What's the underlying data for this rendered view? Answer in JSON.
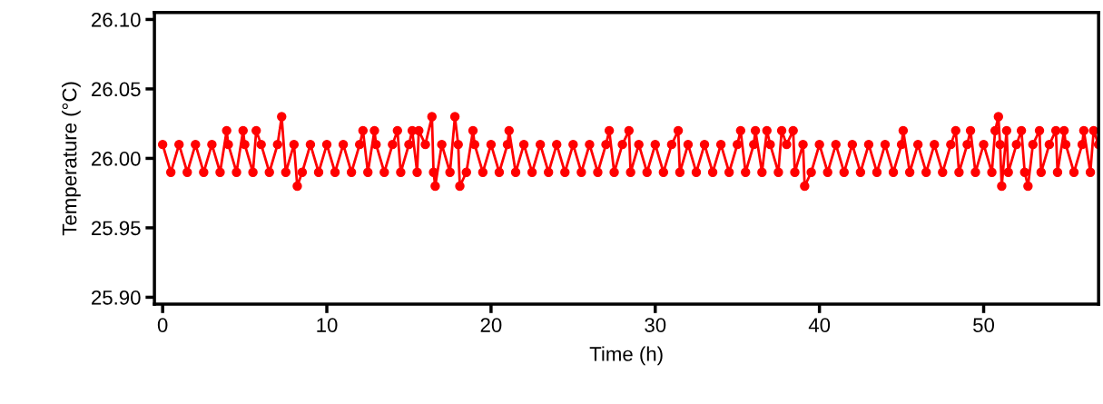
{
  "chart_data": {
    "type": "line",
    "xlabel": "Time (h)",
    "ylabel": "Temperature (°C)",
    "xlim": [
      -0.5,
      57
    ],
    "xticks": [
      0,
      10,
      20,
      30,
      40,
      50
    ],
    "ylim": [
      25.895,
      26.105
    ],
    "yticks": [
      {
        "value": 25.9,
        "label": "25.90"
      },
      {
        "value": 25.95,
        "label": "25.95"
      },
      {
        "value": 26.0,
        "label": "26.00"
      },
      {
        "value": 26.05,
        "label": "26.05"
      },
      {
        "value": 26.1,
        "label": "26.10"
      }
    ],
    "grid": false,
    "marker": "circle",
    "line_style": "solid",
    "series": [
      {
        "color": "#ff0000",
        "x": [
          0,
          0.5,
          1,
          1.5,
          2,
          2.5,
          3,
          3.5,
          3.9,
          4,
          4.5,
          4.9,
          5,
          5.5,
          5.7,
          6,
          6.5,
          7,
          7.25,
          7.5,
          8,
          8.2,
          8.5,
          9,
          9.5,
          10,
          10.5,
          11,
          11.5,
          12,
          12.2,
          12.5,
          12.9,
          13,
          13.5,
          14,
          14.3,
          14.5,
          15,
          15.2,
          15.5,
          15.6,
          16,
          16.4,
          16.5,
          16.6,
          17,
          17.5,
          17.8,
          18,
          18.1,
          18.5,
          18.9,
          19,
          19.5,
          20,
          20.5,
          21,
          21.1,
          21.5,
          22,
          22.5,
          23,
          23.5,
          24,
          24.5,
          25,
          25.5,
          26,
          26.5,
          27,
          27.2,
          27.5,
          28,
          28.4,
          28.5,
          29,
          29.5,
          30,
          30.5,
          31,
          31.4,
          31.5,
          32,
          32.5,
          33,
          33.5,
          34,
          34.5,
          35,
          35.2,
          35.5,
          36,
          36.1,
          36.5,
          36.8,
          37,
          37.5,
          37.7,
          38,
          38.4,
          38.5,
          39,
          39.1,
          39.5,
          40,
          40.5,
          41,
          41.5,
          42,
          42.5,
          43,
          43.5,
          44,
          44.5,
          45,
          45.1,
          45.5,
          46,
          46.5,
          47,
          47.5,
          48,
          48.3,
          48.5,
          49,
          49.2,
          49.5,
          50,
          50.5,
          50.7,
          50.9,
          51,
          51.1,
          51.4,
          51.5,
          52,
          52.3,
          52.5,
          52.7,
          53,
          53.4,
          53.5,
          54,
          54.4,
          54.5,
          54.9,
          55,
          55.5,
          56,
          56.1,
          56.5,
          56.7,
          57
        ],
        "values": [
          26.01,
          25.99,
          26.01,
          25.99,
          26.01,
          25.99,
          26.01,
          25.99,
          26.02,
          26.01,
          25.99,
          26.02,
          26.01,
          25.99,
          26.02,
          26.01,
          25.99,
          26.01,
          26.03,
          25.99,
          26.01,
          25.98,
          25.99,
          26.01,
          25.99,
          26.01,
          25.99,
          26.01,
          25.99,
          26.01,
          26.02,
          25.99,
          26.02,
          26.01,
          25.99,
          26.01,
          26.02,
          25.99,
          26.01,
          26.02,
          25.99,
          26.02,
          26.01,
          26.03,
          25.99,
          25.98,
          26.01,
          25.99,
          26.03,
          26.01,
          25.98,
          25.99,
          26.02,
          26.01,
          25.99,
          26.01,
          25.99,
          26.01,
          26.02,
          25.99,
          26.01,
          25.99,
          26.01,
          25.99,
          26.01,
          25.99,
          26.01,
          25.99,
          26.01,
          25.99,
          26.01,
          26.02,
          25.99,
          26.01,
          26.02,
          25.99,
          26.01,
          25.99,
          26.01,
          25.99,
          26.01,
          26.02,
          25.99,
          26.01,
          25.99,
          26.01,
          25.99,
          26.01,
          25.99,
          26.01,
          26.02,
          25.99,
          26.01,
          26.02,
          25.99,
          26.02,
          26.01,
          25.99,
          26.02,
          26.01,
          26.02,
          25.99,
          26.01,
          25.98,
          25.99,
          26.01,
          25.99,
          26.01,
          25.99,
          26.01,
          25.99,
          26.01,
          25.99,
          26.01,
          25.99,
          26.01,
          26.02,
          25.99,
          26.01,
          25.99,
          26.01,
          25.99,
          26.01,
          26.02,
          25.99,
          26.01,
          26.02,
          25.99,
          26.01,
          25.99,
          26.02,
          26.03,
          26.01,
          25.98,
          26.02,
          25.99,
          26.01,
          26.02,
          25.99,
          25.98,
          26.01,
          26.02,
          25.99,
          26.01,
          26.02,
          25.99,
          26.02,
          26.01,
          25.99,
          26.01,
          26.02,
          25.99,
          26.02,
          26.01
        ]
      }
    ]
  }
}
